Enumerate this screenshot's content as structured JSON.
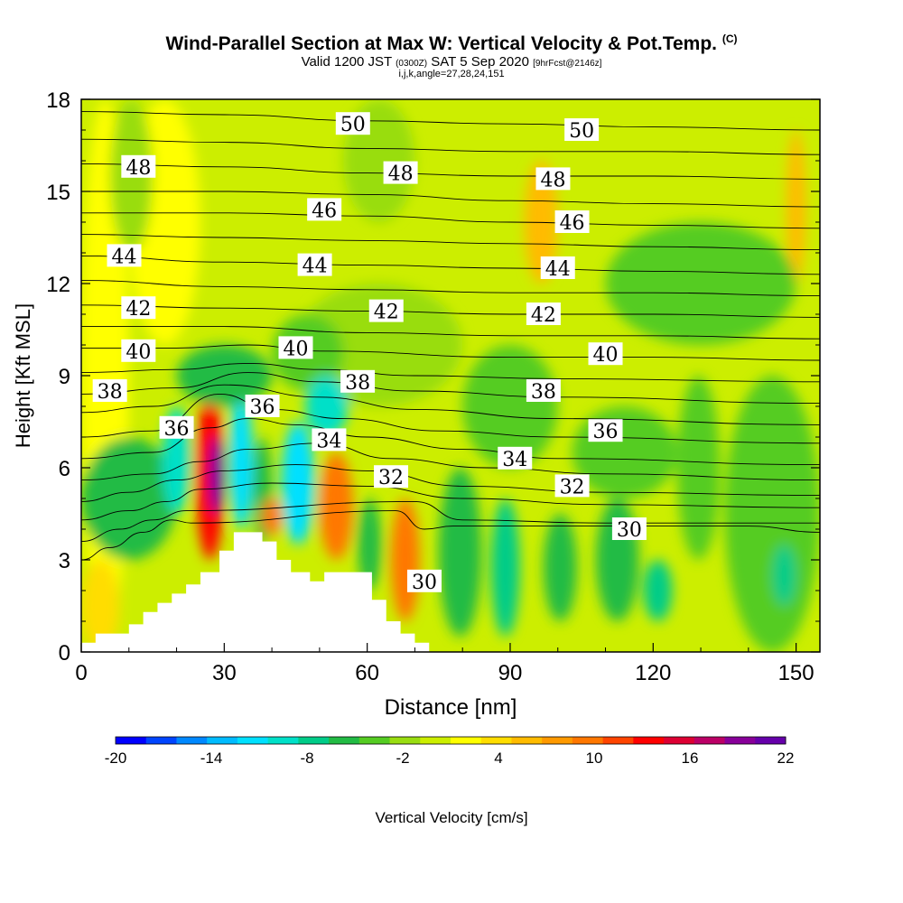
{
  "header": {
    "title": "Wind-Parallel Section at Max W: Vertical Velocity & Pot.Temp.",
    "title_unit": "(C)",
    "subtitle_main": "Valid 1200 JST",
    "subtitle_utc": "(0300Z)",
    "subtitle_date": "SAT 5 Sep 2020",
    "subtitle_fcst": "[9hrFcst@2146z]",
    "params": "i,j,k,angle=27,28,24,151"
  },
  "chart_data": {
    "type": "heatmap",
    "title": "Wind-Parallel Section at Max W: Vertical Velocity & Pot.Temp.",
    "xlabel": "Distance [nm]",
    "ylabel": "Height [Kft MSL]",
    "xlim": [
      0,
      155
    ],
    "ylim": [
      0,
      18
    ],
    "x_ticks": [
      0,
      30,
      60,
      90,
      120,
      150
    ],
    "y_ticks": [
      0,
      3,
      6,
      9,
      12,
      15,
      18
    ],
    "grid": false,
    "colorbar": {
      "label": "Vertical Velocity [cm/s]",
      "tick_labels": [
        "-20",
        "-14",
        "-8",
        "-2",
        "4",
        "10",
        "16",
        "22"
      ],
      "range": [
        -20,
        22
      ],
      "colors": [
        "#0000ff",
        "#0044ff",
        "#0088ff",
        "#00bbff",
        "#00e0ff",
        "#00e0c8",
        "#00cc88",
        "#22bb44",
        "#55cc22",
        "#99dd11",
        "#ccee00",
        "#ffff00",
        "#ffdd00",
        "#ffbb00",
        "#ff9900",
        "#ff7700",
        "#ff4400",
        "#ff0000",
        "#dd0033",
        "#bb0066",
        "#880099",
        "#6600aa"
      ]
    },
    "terrain": [
      [
        0,
        0.3
      ],
      [
        3,
        0.3
      ],
      [
        3,
        0.6
      ],
      [
        10,
        0.6
      ],
      [
        10,
        0.9
      ],
      [
        13,
        0.9
      ],
      [
        13,
        1.3
      ],
      [
        16,
        1.3
      ],
      [
        16,
        1.6
      ],
      [
        19,
        1.6
      ],
      [
        19,
        1.9
      ],
      [
        22,
        1.9
      ],
      [
        22,
        2.2
      ],
      [
        25,
        2.2
      ],
      [
        25,
        2.6
      ],
      [
        29,
        2.6
      ],
      [
        29,
        3.3
      ],
      [
        32,
        3.3
      ],
      [
        32,
        3.9
      ],
      [
        38,
        3.9
      ],
      [
        38,
        3.6
      ],
      [
        41,
        3.6
      ],
      [
        41,
        3.0
      ],
      [
        44,
        3.0
      ],
      [
        44,
        2.6
      ],
      [
        48,
        2.6
      ],
      [
        48,
        2.3
      ],
      [
        51,
        2.3
      ],
      [
        51,
        2.6
      ],
      [
        61,
        2.6
      ],
      [
        61,
        1.7
      ],
      [
        64,
        1.7
      ],
      [
        64,
        1.0
      ],
      [
        67,
        1.0
      ],
      [
        67,
        0.6
      ],
      [
        70,
        0.6
      ],
      [
        70,
        0.3
      ],
      [
        73,
        0.3
      ],
      [
        73,
        0
      ]
    ],
    "velocity_cells": [
      {
        "x": [
          0,
          10
        ],
        "y": [
          0,
          18
        ],
        "w": 2
      },
      {
        "x": [
          10,
          25
        ],
        "y": [
          10,
          18
        ],
        "w": 2
      },
      {
        "x": [
          6,
          15
        ],
        "y": [
          13,
          18
        ],
        "w": -2
      },
      {
        "x": [
          0,
          20
        ],
        "y": [
          3,
          7
        ],
        "w": -6
      },
      {
        "x": [
          0,
          8
        ],
        "y": [
          0,
          3
        ],
        "w": 4
      },
      {
        "x": [
          17,
          23
        ],
        "y": [
          4.5,
          8
        ],
        "w": -10
      },
      {
        "x": [
          24,
          30
        ],
        "y": [
          3,
          8.5
        ],
        "w": 14
      },
      {
        "x": [
          27,
          30
        ],
        "y": [
          4.5,
          7
        ],
        "w": 22
      },
      {
        "x": [
          31,
          36
        ],
        "y": [
          4,
          8.5
        ],
        "w": -12
      },
      {
        "x": [
          36,
          40
        ],
        "y": [
          3.5,
          7
        ],
        "w": -6
      },
      {
        "x": [
          38,
          42
        ],
        "y": [
          3.8,
          5
        ],
        "w": 10
      },
      {
        "x": [
          42,
          49
        ],
        "y": [
          3.5,
          7.5
        ],
        "w": -12
      },
      {
        "x": [
          50,
          57
        ],
        "y": [
          3,
          6.5
        ],
        "w": 10
      },
      {
        "x": [
          58,
          63
        ],
        "y": [
          2,
          5
        ],
        "w": -6
      },
      {
        "x": [
          65,
          71
        ],
        "y": [
          1,
          5
        ],
        "w": 10
      },
      {
        "x": [
          75,
          84
        ],
        "y": [
          0.5,
          6
        ],
        "w": -6
      },
      {
        "x": [
          86,
          92
        ],
        "y": [
          0.5,
          5
        ],
        "w": -8
      },
      {
        "x": [
          97,
          104
        ],
        "y": [
          1,
          4.5
        ],
        "w": -6
      },
      {
        "x": [
          108,
          117
        ],
        "y": [
          1,
          5
        ],
        "w": -6
      },
      {
        "x": [
          118,
          124
        ],
        "y": [
          1,
          3
        ],
        "w": -8
      },
      {
        "x": [
          125,
          134
        ],
        "y": [
          3,
          9
        ],
        "w": -4
      },
      {
        "x": [
          135,
          155
        ],
        "y": [
          0,
          9
        ],
        "w": -4
      },
      {
        "x": [
          145,
          150
        ],
        "y": [
          1.5,
          3.5
        ],
        "w": -8
      },
      {
        "x": [
          148,
          152
        ],
        "y": [
          12,
          17
        ],
        "w": 6
      },
      {
        "x": [
          93,
          100
        ],
        "y": [
          12,
          16
        ],
        "w": 6
      },
      {
        "x": [
          103,
          125
        ],
        "y": [
          5,
          8
        ],
        "w": -4
      },
      {
        "x": [
          80,
          100
        ],
        "y": [
          6,
          10
        ],
        "w": -4
      },
      {
        "x": [
          45,
          80
        ],
        "y": [
          8,
          12
        ],
        "w": -2
      },
      {
        "x": [
          55,
          70
        ],
        "y": [
          14,
          18
        ],
        "w": -2
      },
      {
        "x": [
          110,
          150
        ],
        "y": [
          10,
          14
        ],
        "w": -4
      },
      {
        "x": [
          20,
          40
        ],
        "y": [
          8,
          10
        ],
        "w": -6
      },
      {
        "x": [
          40,
          55
        ],
        "y": [
          8.5,
          11
        ],
        "w": -4
      },
      {
        "x": [
          47,
          56
        ],
        "y": [
          7,
          9
        ],
        "w": -10
      }
    ],
    "isotherm_labels": [
      {
        "text": "50",
        "x": 57,
        "y": 17.2
      },
      {
        "text": "50",
        "x": 105,
        "y": 17.0
      },
      {
        "text": "48",
        "x": 12,
        "y": 15.8
      },
      {
        "text": "48",
        "x": 67,
        "y": 15.6
      },
      {
        "text": "48",
        "x": 99,
        "y": 15.4
      },
      {
        "text": "46",
        "x": 51,
        "y": 14.4
      },
      {
        "text": "46",
        "x": 103,
        "y": 14.0
      },
      {
        "text": "44",
        "x": 9,
        "y": 12.9
      },
      {
        "text": "44",
        "x": 49,
        "y": 12.6
      },
      {
        "text": "44",
        "x": 100,
        "y": 12.5
      },
      {
        "text": "42",
        "x": 12,
        "y": 11.2
      },
      {
        "text": "42",
        "x": 64,
        "y": 11.1
      },
      {
        "text": "42",
        "x": 97,
        "y": 11.0
      },
      {
        "text": "40",
        "x": 12,
        "y": 9.8
      },
      {
        "text": "40",
        "x": 45,
        "y": 9.9
      },
      {
        "text": "40",
        "x": 110,
        "y": 9.7
      },
      {
        "text": "38",
        "x": 6,
        "y": 8.5
      },
      {
        "text": "38",
        "x": 58,
        "y": 8.8
      },
      {
        "text": "38",
        "x": 97,
        "y": 8.5
      },
      {
        "text": "36",
        "x": 20,
        "y": 7.3
      },
      {
        "text": "36",
        "x": 38,
        "y": 8.0
      },
      {
        "text": "36",
        "x": 110,
        "y": 7.2
      },
      {
        "text": "34",
        "x": 52,
        "y": 6.9
      },
      {
        "text": "34",
        "x": 91,
        "y": 6.3
      },
      {
        "text": "32",
        "x": 65,
        "y": 5.7
      },
      {
        "text": "32",
        "x": 103,
        "y": 5.4
      },
      {
        "text": "30",
        "x": 115,
        "y": 4.0
      },
      {
        "text": "30",
        "x": 72,
        "y": 2.3
      }
    ],
    "isentropes": [
      {
        "theta": 50,
        "points": [
          [
            0,
            17.6
          ],
          [
            30,
            17.5
          ],
          [
            60,
            17.3
          ],
          [
            90,
            17.2
          ],
          [
            120,
            17.1
          ],
          [
            155,
            17.0
          ]
        ]
      },
      {
        "theta": 49,
        "points": [
          [
            0,
            16.7
          ],
          [
            30,
            16.6
          ],
          [
            60,
            16.4
          ],
          [
            90,
            16.3
          ],
          [
            120,
            16.3
          ],
          [
            155,
            16.2
          ]
        ]
      },
      {
        "theta": 48,
        "points": [
          [
            0,
            15.9
          ],
          [
            30,
            15.8
          ],
          [
            60,
            15.6
          ],
          [
            90,
            15.5
          ],
          [
            120,
            15.5
          ],
          [
            155,
            15.4
          ]
        ]
      },
      {
        "theta": 47,
        "points": [
          [
            0,
            15.0
          ],
          [
            30,
            15.0
          ],
          [
            60,
            14.9
          ],
          [
            90,
            14.7
          ],
          [
            120,
            14.6
          ],
          [
            155,
            14.5
          ]
        ]
      },
      {
        "theta": 46,
        "points": [
          [
            0,
            14.3
          ],
          [
            30,
            14.3
          ],
          [
            60,
            14.2
          ],
          [
            90,
            14.0
          ],
          [
            120,
            13.9
          ],
          [
            155,
            13.8
          ]
        ]
      },
      {
        "theta": 45,
        "points": [
          [
            0,
            13.6
          ],
          [
            30,
            13.5
          ],
          [
            60,
            13.4
          ],
          [
            90,
            13.3
          ],
          [
            120,
            13.2
          ],
          [
            155,
            13.1
          ]
        ]
      },
      {
        "theta": 44,
        "points": [
          [
            0,
            12.9
          ],
          [
            30,
            12.7
          ],
          [
            60,
            12.6
          ],
          [
            90,
            12.5
          ],
          [
            120,
            12.4
          ],
          [
            155,
            12.3
          ]
        ]
      },
      {
        "theta": 43,
        "points": [
          [
            0,
            12.1
          ],
          [
            30,
            11.9
          ],
          [
            60,
            11.8
          ],
          [
            90,
            11.7
          ],
          [
            120,
            11.7
          ],
          [
            155,
            11.6
          ]
        ]
      },
      {
        "theta": 42,
        "points": [
          [
            0,
            11.3
          ],
          [
            30,
            11.2
          ],
          [
            60,
            11.1
          ],
          [
            90,
            11.0
          ],
          [
            120,
            11.0
          ],
          [
            155,
            10.9
          ]
        ]
      },
      {
        "theta": 41,
        "points": [
          [
            0,
            10.6
          ],
          [
            30,
            10.6
          ],
          [
            60,
            10.4
          ],
          [
            90,
            10.3
          ],
          [
            120,
            10.3
          ],
          [
            155,
            10.2
          ]
        ]
      },
      {
        "theta": 40,
        "points": [
          [
            0,
            9.9
          ],
          [
            20,
            9.9
          ],
          [
            35,
            10.0
          ],
          [
            50,
            9.8
          ],
          [
            90,
            9.6
          ],
          [
            120,
            9.6
          ],
          [
            155,
            9.5
          ]
        ]
      },
      {
        "theta": 39,
        "points": [
          [
            0,
            9.1
          ],
          [
            20,
            9.2
          ],
          [
            35,
            9.4
          ],
          [
            50,
            9.2
          ],
          [
            70,
            9.0
          ],
          [
            100,
            8.9
          ],
          [
            155,
            8.8
          ]
        ]
      },
      {
        "theta": 38,
        "points": [
          [
            0,
            8.4
          ],
          [
            20,
            8.6
          ],
          [
            35,
            9.1
          ],
          [
            50,
            8.8
          ],
          [
            70,
            8.5
          ],
          [
            100,
            8.3
          ],
          [
            155,
            8.1
          ]
        ]
      },
      {
        "theta": 37,
        "points": [
          [
            0,
            7.8
          ],
          [
            15,
            8.0
          ],
          [
            30,
            8.7
          ],
          [
            50,
            8.3
          ],
          [
            70,
            7.9
          ],
          [
            100,
            7.6
          ],
          [
            155,
            7.4
          ]
        ]
      },
      {
        "theta": 36,
        "points": [
          [
            0,
            7.0
          ],
          [
            15,
            7.2
          ],
          [
            29,
            8.4
          ],
          [
            40,
            7.9
          ],
          [
            55,
            7.6
          ],
          [
            75,
            7.2
          ],
          [
            100,
            7.0
          ],
          [
            155,
            6.8
          ]
        ]
      },
      {
        "theta": 35,
        "points": [
          [
            0,
            6.3
          ],
          [
            15,
            6.5
          ],
          [
            27,
            7.3
          ],
          [
            35,
            7.6
          ],
          [
            45,
            7.4
          ],
          [
            60,
            7.0
          ],
          [
            80,
            6.6
          ],
          [
            100,
            6.3
          ],
          [
            155,
            6.1
          ]
        ]
      },
      {
        "theta": 34,
        "points": [
          [
            0,
            5.6
          ],
          [
            15,
            5.8
          ],
          [
            25,
            6.2
          ],
          [
            35,
            6.6
          ],
          [
            50,
            6.8
          ],
          [
            65,
            6.3
          ],
          [
            85,
            6.0
          ],
          [
            110,
            5.8
          ],
          [
            155,
            5.6
          ]
        ]
      },
      {
        "theta": 33,
        "points": [
          [
            0,
            4.9
          ],
          [
            10,
            5.2
          ],
          [
            20,
            5.6
          ],
          [
            30,
            5.9
          ],
          [
            45,
            6.1
          ],
          [
            60,
            5.9
          ],
          [
            80,
            5.4
          ],
          [
            110,
            5.2
          ],
          [
            155,
            5.1
          ]
        ]
      },
      {
        "theta": 32,
        "points": [
          [
            0,
            4.3
          ],
          [
            10,
            4.6
          ],
          [
            18,
            4.9
          ],
          [
            25,
            5.3
          ],
          [
            40,
            5.5
          ],
          [
            60,
            5.4
          ],
          [
            80,
            5.0
          ],
          [
            110,
            4.8
          ],
          [
            155,
            4.7
          ]
        ]
      },
      {
        "theta": 31,
        "points": [
          [
            0,
            3.6
          ],
          [
            8,
            4.0
          ],
          [
            15,
            4.3
          ],
          [
            22,
            4.6
          ],
          [
            70,
            4.9
          ],
          [
            80,
            4.3
          ],
          [
            110,
            4.2
          ],
          [
            155,
            4.2
          ]
        ]
      },
      {
        "theta": 30,
        "points": [
          [
            0,
            3.0
          ],
          [
            6,
            3.4
          ],
          [
            13,
            3.9
          ],
          [
            19,
            4.3
          ],
          [
            23,
            4.2
          ],
          [
            66,
            4.6
          ],
          [
            72,
            4.0
          ],
          [
            78,
            4.1
          ],
          [
            110,
            4.1
          ],
          [
            140,
            4.1
          ],
          [
            155,
            3.9
          ]
        ]
      }
    ]
  }
}
